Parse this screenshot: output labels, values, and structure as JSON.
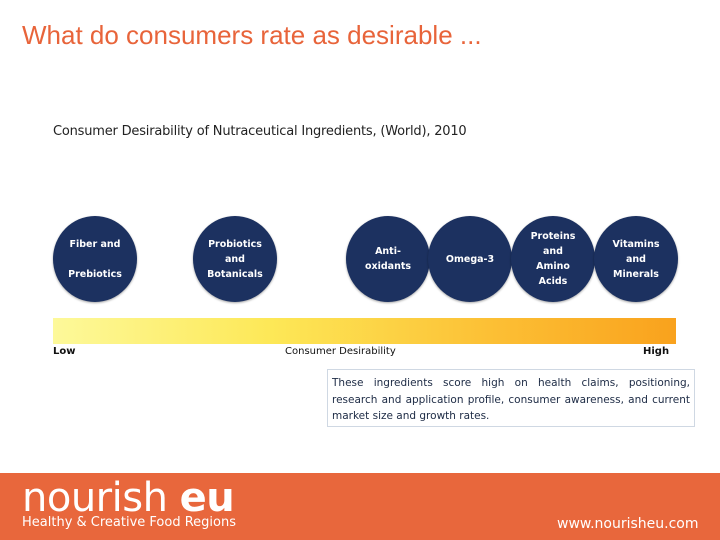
{
  "slide": {
    "title": "What do consumers rate as desirable ..."
  },
  "figure": {
    "title": "Consumer Desirability of Nutraceutical Ingredients, (World), 2010",
    "ingredients": [
      {
        "lines": [
          "Fiber and",
          "",
          "Prebiotics"
        ]
      },
      {
        "lines": [
          "Probiotics",
          "and",
          "Botanicals"
        ]
      },
      {
        "lines": [
          "Anti-",
          "oxidants"
        ]
      },
      {
        "lines": [
          "Omega-3"
        ]
      },
      {
        "lines": [
          "Proteins",
          "and",
          "Amino",
          "Acids"
        ]
      },
      {
        "lines": [
          "Vitamins",
          "and",
          "Minerals"
        ]
      }
    ],
    "axis": {
      "low": "Low",
      "middle": "Consumer Desirability",
      "high": "High"
    },
    "note": "These ingredients score high on health claims, positioning, research and application profile, consumer awareness, and current market size and growth rates.",
    "colors": {
      "circle": "#1c3160",
      "bar_start": "#fdf99a",
      "bar_end": "#f9a21d"
    }
  },
  "footer": {
    "brand_light": "nourish ",
    "brand_bold": "eu",
    "tagline": "Healthy & Creative Food Regions",
    "website": "www.nourisheu.com",
    "color": "#e8673c"
  }
}
